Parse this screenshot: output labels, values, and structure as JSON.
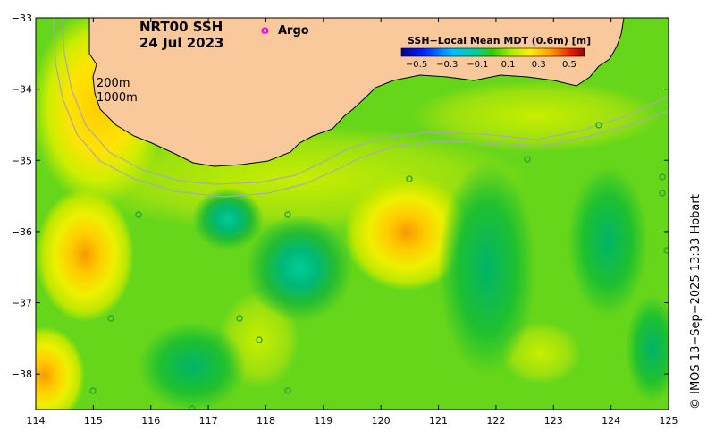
{
  "title": {
    "product": "NRT00 SSH",
    "date": "24 Jul 2023"
  },
  "argo_legend": {
    "symbol": "o",
    "label": "Argo",
    "color": "#ff00ff"
  },
  "contour_labels": {
    "shallow": "200m",
    "deep": "1000m"
  },
  "colorbar": {
    "title": "SSH−Local Mean MDT (0.6m) [m]",
    "tick_labels": [
      "−0.5",
      "−0.3",
      "−0.1",
      "0.1",
      "0.3",
      "0.5"
    ],
    "range": [
      -0.6,
      0.6
    ]
  },
  "credit": "© IMOS 13−Sep−2025 13:33 Hobart",
  "axes": {
    "x_range": [
      114,
      125
    ],
    "y_range": [
      -38.5,
      -33
    ],
    "x_tick_labels": [
      "114",
      "115",
      "116",
      "117",
      "118",
      "119",
      "120",
      "121",
      "122",
      "123",
      "124",
      "125"
    ],
    "y_tick_labels": [
      "−33",
      "−34",
      "−35",
      "−36",
      "−37",
      "−38"
    ]
  },
  "colors": {
    "land": "#f9c89b",
    "sea_base": "#66d61a",
    "bathymetry": "#aaaaaa",
    "argo": "#ff00ff"
  },
  "features": [
    {
      "name": "cool-eddy-central",
      "lon": 118.6,
      "lat": -36.5,
      "value": -0.3
    },
    {
      "name": "cool-eddy-north",
      "lon": 117.4,
      "lat": -35.85,
      "value": -0.2
    },
    {
      "name": "warm-eddy-central",
      "lon": 120.5,
      "lat": -35.95,
      "value": 0.35
    },
    {
      "name": "warm-eddy-west",
      "lon": 114.8,
      "lat": -36.3,
      "value": 0.3
    },
    {
      "name": "warm-coastal-northwest",
      "lon": 115.0,
      "lat": -33.3,
      "value": 0.25
    },
    {
      "name": "warm-corner-southwest",
      "lon": 114.1,
      "lat": -38.2,
      "value": 0.35
    },
    {
      "name": "cool-band-east",
      "lon": 122.2,
      "lat": -37.0,
      "value": -0.2
    },
    {
      "name": "cool-band-far-east",
      "lon": 123.8,
      "lat": -36.8,
      "value": -0.15
    },
    {
      "name": "cool-south-centre",
      "lon": 117.2,
      "lat": -38.0,
      "value": -0.2
    }
  ]
}
